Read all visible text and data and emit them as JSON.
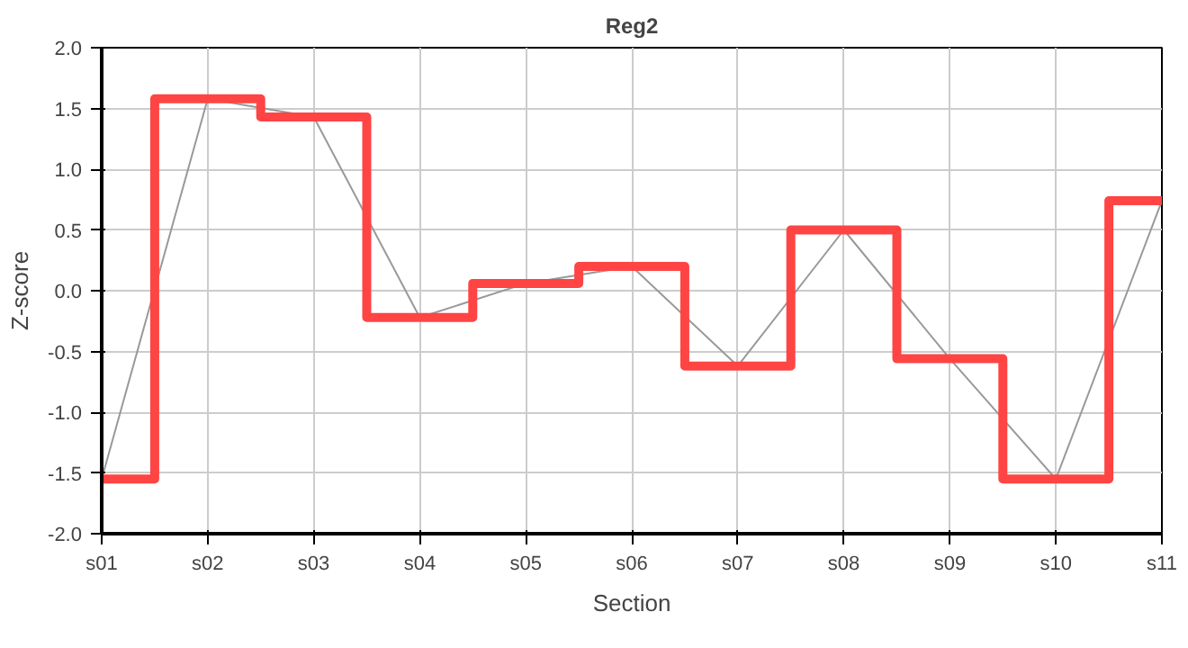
{
  "chart_data": {
    "type": "step",
    "title": "Reg2",
    "xlabel": "Section",
    "ylabel": "Z-score",
    "categories": [
      "s01",
      "s02",
      "s03",
      "s04",
      "s05",
      "s06",
      "s07",
      "s08",
      "s09",
      "s10",
      "s11"
    ],
    "series": [
      {
        "type": "line",
        "color": "#999999",
        "values": [
          -1.55,
          1.58,
          1.43,
          -0.22,
          0.06,
          0.2,
          -0.62,
          0.5,
          -0.56,
          -1.55,
          0.74
        ]
      },
      {
        "color": "#ff4444",
        "values": [
          -1.55,
          1.58,
          1.43,
          -0.22,
          0.06,
          0.2,
          -0.62,
          0.5,
          -0.56,
          -1.55,
          0.74
        ]
      }
    ],
    "ylim": [
      -2.0,
      2.0
    ],
    "yticks": [
      {
        "value": -2,
        "label": "-2.0"
      },
      {
        "value": -1.5,
        "label": "-1.5"
      },
      {
        "value": -1,
        "label": "-1.0"
      },
      {
        "value": -0.5,
        "label": "-0.5"
      },
      {
        "value": 0,
        "label": "0.0"
      },
      {
        "value": 0.5,
        "label": "0.5"
      },
      {
        "value": 1,
        "label": "1.0"
      },
      {
        "value": 1.5,
        "label": "1.5"
      },
      {
        "value": 2,
        "label": "2.0"
      }
    ],
    "grid": true
  }
}
